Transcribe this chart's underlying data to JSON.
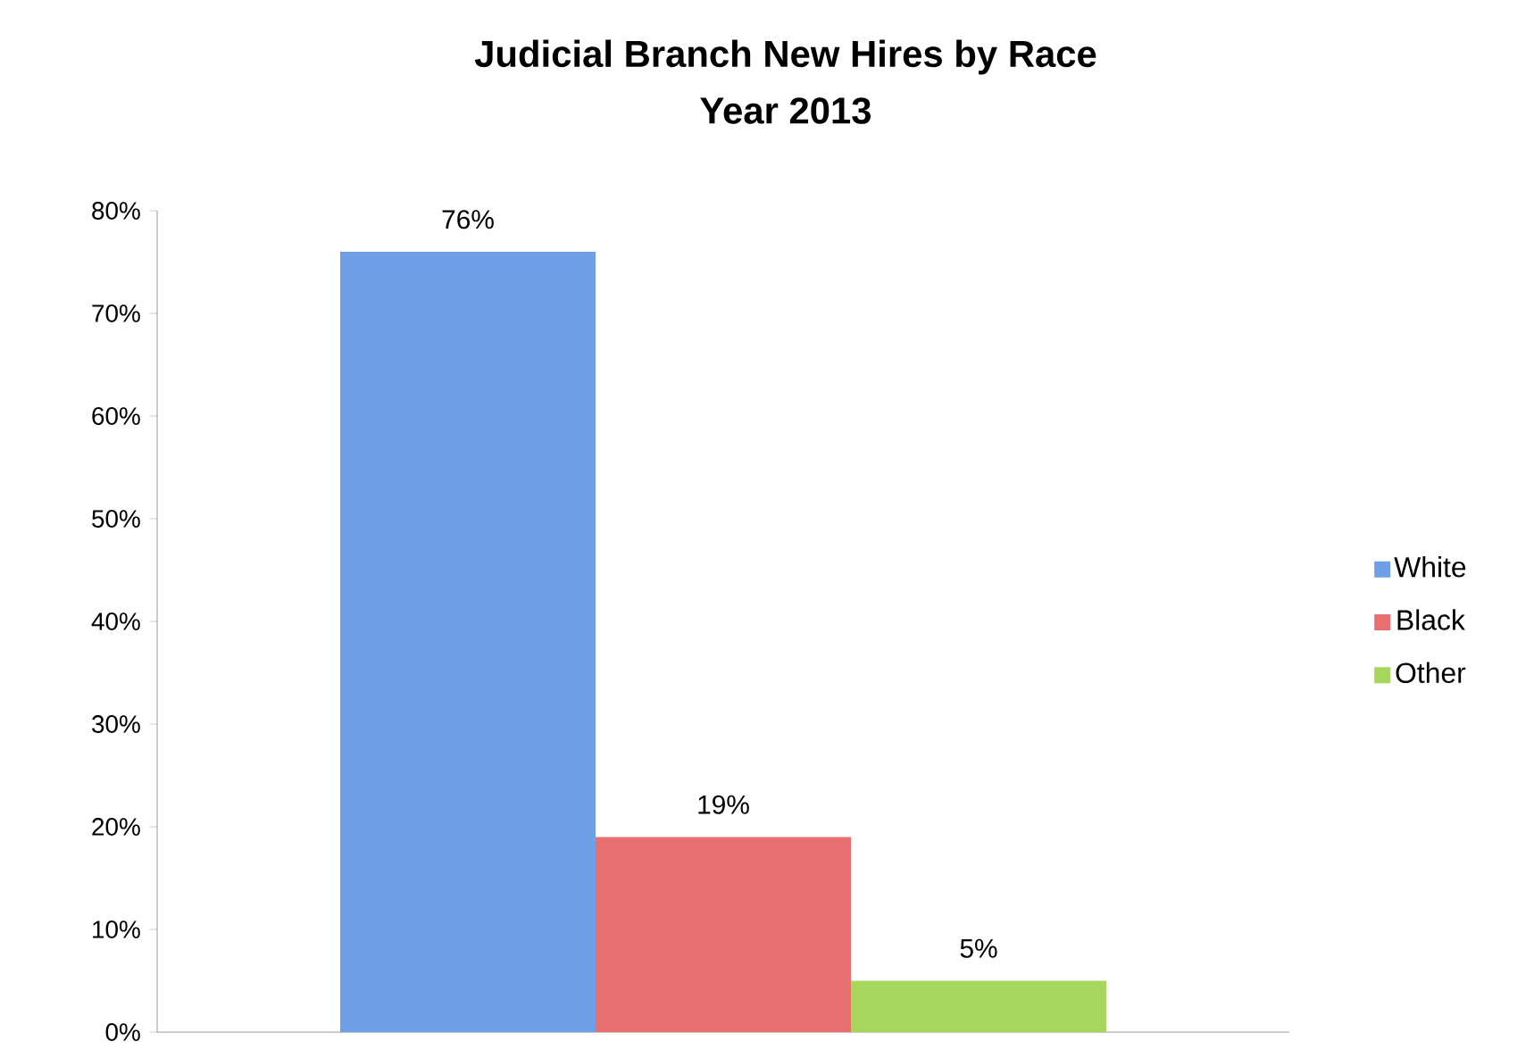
{
  "chart_data": {
    "type": "bar",
    "title": "Judicial Branch New Hires by Race",
    "subtitle": "Year 2013",
    "categories": [
      null
    ],
    "series": [
      {
        "name": "White",
        "color": "#6f9fe6",
        "values": [
          76
        ],
        "value_labels": [
          "76%"
        ]
      },
      {
        "name": "Black",
        "color": "#e86f6f",
        "values": [
          19
        ],
        "value_labels": [
          "19%"
        ]
      },
      {
        "name": "Other",
        "color": "#a6d65c",
        "values": [
          5
        ],
        "value_labels": [
          "5%"
        ]
      }
    ],
    "ylim": [
      0,
      80
    ],
    "yticks": [
      {
        "value": 0,
        "label": "0%"
      },
      {
        "value": 10,
        "label": "10%"
      },
      {
        "value": 20,
        "label": "20%"
      },
      {
        "value": 30,
        "label": "30%"
      },
      {
        "value": 40,
        "label": "40%"
      },
      {
        "value": 50,
        "label": "50%"
      },
      {
        "value": 60,
        "label": "60%"
      },
      {
        "value": 70,
        "label": "70%"
      },
      {
        "value": 80,
        "label": "80%"
      }
    ],
    "legend": "right"
  }
}
